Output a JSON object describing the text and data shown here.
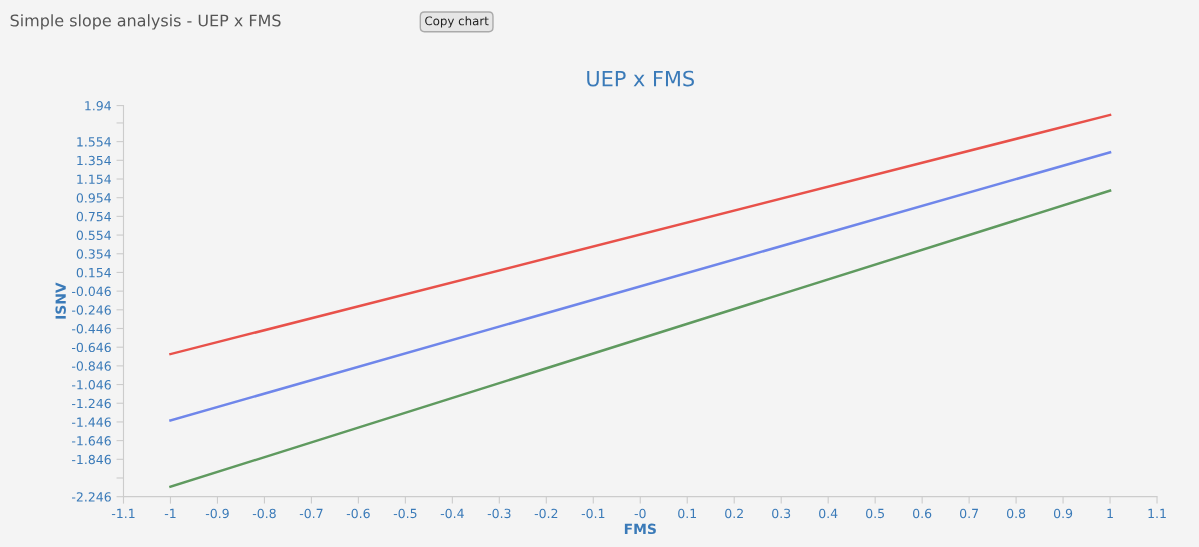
{
  "chart_data": {
    "type": "line",
    "title": "UEP x FMS",
    "xlabel": "FMS",
    "ylabel": "ISNV",
    "annotations": [
      "Simple slope analysis - UEP x FMS",
      "Copy chart"
    ],
    "x": [
      -1,
      1
    ],
    "series": [
      {
        "color": "#e8514a",
        "values": [
          -0.72,
          1.84
        ]
      },
      {
        "color": "#6f86ea",
        "values": [
          -1.43,
          1.44
        ]
      },
      {
        "color": "#5f9a5f",
        "values": [
          -2.14,
          1.03
        ]
      }
    ],
    "xlim": [
      -1.1,
      1.1
    ],
    "xticks": [
      -1.1,
      -1,
      -0.9,
      -0.8,
      -0.7,
      -0.6,
      -0.5,
      -0.4,
      -0.3,
      -0.2,
      -0.1,
      {
        "value": 0,
        "label": "-0"
      },
      0.1,
      0.2,
      0.3,
      0.4,
      0.5,
      0.6,
      0.7,
      0.8,
      0.9,
      1,
      1.1
    ],
    "ylim": [
      -2.246,
      1.94
    ],
    "yticks": [
      -2.246,
      {
        "value": -2.046,
        "label": null
      },
      -1.846,
      -1.646,
      -1.446,
      -1.246,
      -1.046,
      -0.846,
      -0.646,
      -0.446,
      -0.246,
      -0.046,
      0.154,
      0.354,
      0.554,
      0.754,
      0.954,
      1.154,
      1.354,
      1.554,
      {
        "value": 1.754,
        "label": null
      },
      1.94
    ],
    "grid": false,
    "marker": "none",
    "line_style": "solid"
  }
}
